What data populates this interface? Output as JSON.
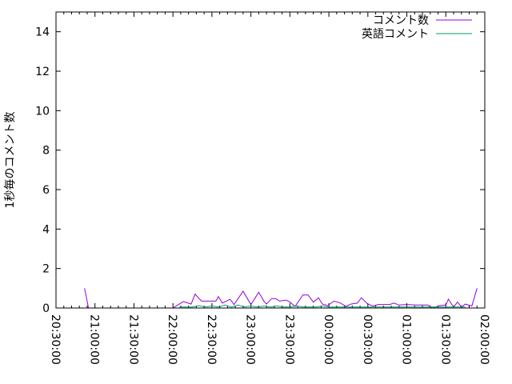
{
  "chart_data": {
    "type": "line",
    "title": "",
    "xlabel": "",
    "ylabel": "1秒毎のコメント数",
    "ylim": [
      0,
      15
    ],
    "yticks": [
      "0",
      "2",
      "4",
      "6",
      "8",
      "10",
      "12",
      "14"
    ],
    "xlim": [
      "20:30:00",
      "02:00:00"
    ],
    "xticks": [
      "20:30:00",
      "21:00:00",
      "21:30:00",
      "22:00:00",
      "22:30:00",
      "23:00:00",
      "23:30:00",
      "00:00:00",
      "00:30:00",
      "01:00:00",
      "01:30:00",
      "02:00:00"
    ],
    "grid": false,
    "legend": "top-right",
    "series": [
      {
        "name": "コメント数",
        "color": "#9400d3",
        "x": [
          "20:52",
          "20:55",
          "22:00",
          "22:08",
          "22:14",
          "22:17",
          "22:22",
          "22:33",
          "22:35",
          "22:38",
          "22:44",
          "22:47",
          "22:54",
          "23:00",
          "23:06",
          "23:10",
          "23:12",
          "23:16",
          "23:19",
          "23:22",
          "23:27",
          "23:30",
          "23:34",
          "23:40",
          "23:44",
          "23:48",
          "23:52",
          "23:55",
          "23:59",
          "00:04",
          "00:09",
          "00:13",
          "00:17",
          "00:22",
          "00:25",
          "00:30",
          "00:34",
          "00:38",
          "00:47",
          "00:50",
          "00:54",
          "01:00",
          "01:07",
          "01:16",
          "01:20",
          "01:25",
          "01:30",
          "01:32",
          "01:36",
          "01:39",
          "01:42",
          "01:45",
          "01:50",
          "01:54"
        ],
        "values": [
          1.0,
          0,
          0,
          0.33,
          0.2,
          0.7,
          0.35,
          0.35,
          0.58,
          0.25,
          0.44,
          0.17,
          0.85,
          0.17,
          0.8,
          0.35,
          0.2,
          0.48,
          0.48,
          0.35,
          0.4,
          0.3,
          0.08,
          0.66,
          0.66,
          0.3,
          0.52,
          0.2,
          0.12,
          0.35,
          0.25,
          0.08,
          0.2,
          0.25,
          0.52,
          0.2,
          0.1,
          0.18,
          0.18,
          0.25,
          0.15,
          0.18,
          0.15,
          0.15,
          0.0,
          0.12,
          0.15,
          0.45,
          0.05,
          0.3,
          0.05,
          0.2,
          0.1,
          1.0
        ]
      },
      {
        "name": "英語コメント",
        "color": "#009e73",
        "x": [
          "22:05",
          "22:15",
          "22:20",
          "22:25",
          "22:30",
          "22:35",
          "22:40",
          "22:45",
          "22:50",
          "22:55",
          "23:00",
          "23:05",
          "23:10",
          "23:15",
          "23:20",
          "23:25",
          "23:30",
          "23:35",
          "23:40",
          "23:45",
          "23:50",
          "23:55",
          "00:00",
          "00:10",
          "00:20",
          "00:30",
          "00:40",
          "00:50",
          "01:00",
          "01:10",
          "01:20",
          "01:30",
          "01:40",
          "01:45"
        ],
        "values": [
          0.05,
          0.05,
          0.12,
          0.05,
          0.1,
          0.05,
          0.15,
          0.05,
          0.15,
          0.05,
          0.1,
          0.05,
          0.1,
          0.05,
          0.1,
          0.05,
          0.05,
          0.1,
          0.05,
          0.05,
          0.05,
          0.1,
          0.05,
          0.05,
          0.05,
          0.05,
          0.05,
          0.05,
          0.05,
          0.05,
          0.05,
          0.05,
          0.05,
          0.05
        ]
      }
    ]
  }
}
